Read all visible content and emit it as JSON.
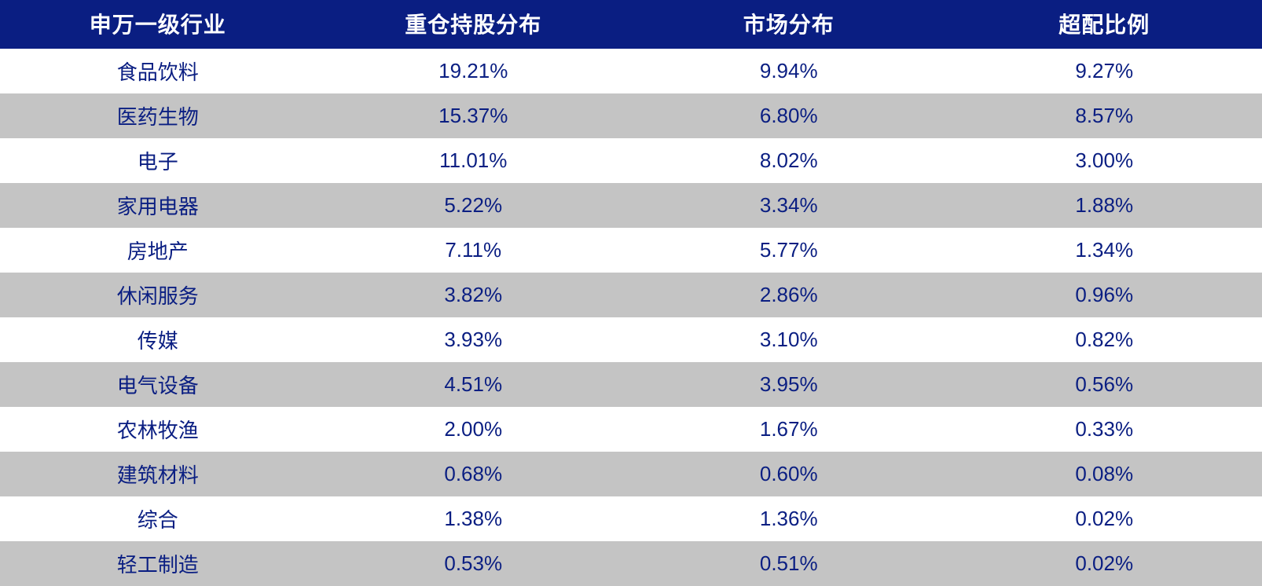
{
  "table": {
    "type": "table",
    "header_bg": "#0a1e82",
    "header_fg": "#ffffff",
    "cell_fg": "#0a1e82",
    "row_odd_bg": "#ffffff",
    "row_even_bg": "#c4c4c4",
    "header_fontsize": 28,
    "cell_fontsize": 26,
    "column_widths_pct": [
      25,
      25,
      25,
      25
    ],
    "columns": [
      "申万一级行业",
      "重仓持股分布",
      "市场分布",
      "超配比例"
    ],
    "rows": [
      [
        "食品饮料",
        "19.21%",
        "9.94%",
        "9.27%"
      ],
      [
        "医药生物",
        "15.37%",
        "6.80%",
        "8.57%"
      ],
      [
        "电子",
        "11.01%",
        "8.02%",
        "3.00%"
      ],
      [
        "家用电器",
        "5.22%",
        "3.34%",
        "1.88%"
      ],
      [
        "房地产",
        "7.11%",
        "5.77%",
        "1.34%"
      ],
      [
        "休闲服务",
        "3.82%",
        "2.86%",
        "0.96%"
      ],
      [
        "传媒",
        "3.93%",
        "3.10%",
        "0.82%"
      ],
      [
        "电气设备",
        "4.51%",
        "3.95%",
        "0.56%"
      ],
      [
        "农林牧渔",
        "2.00%",
        "1.67%",
        "0.33%"
      ],
      [
        "建筑材料",
        "0.68%",
        "0.60%",
        "0.08%"
      ],
      [
        "综合",
        "1.38%",
        "1.36%",
        "0.02%"
      ],
      [
        "轻工制造",
        "0.53%",
        "0.51%",
        "0.02%"
      ]
    ]
  }
}
